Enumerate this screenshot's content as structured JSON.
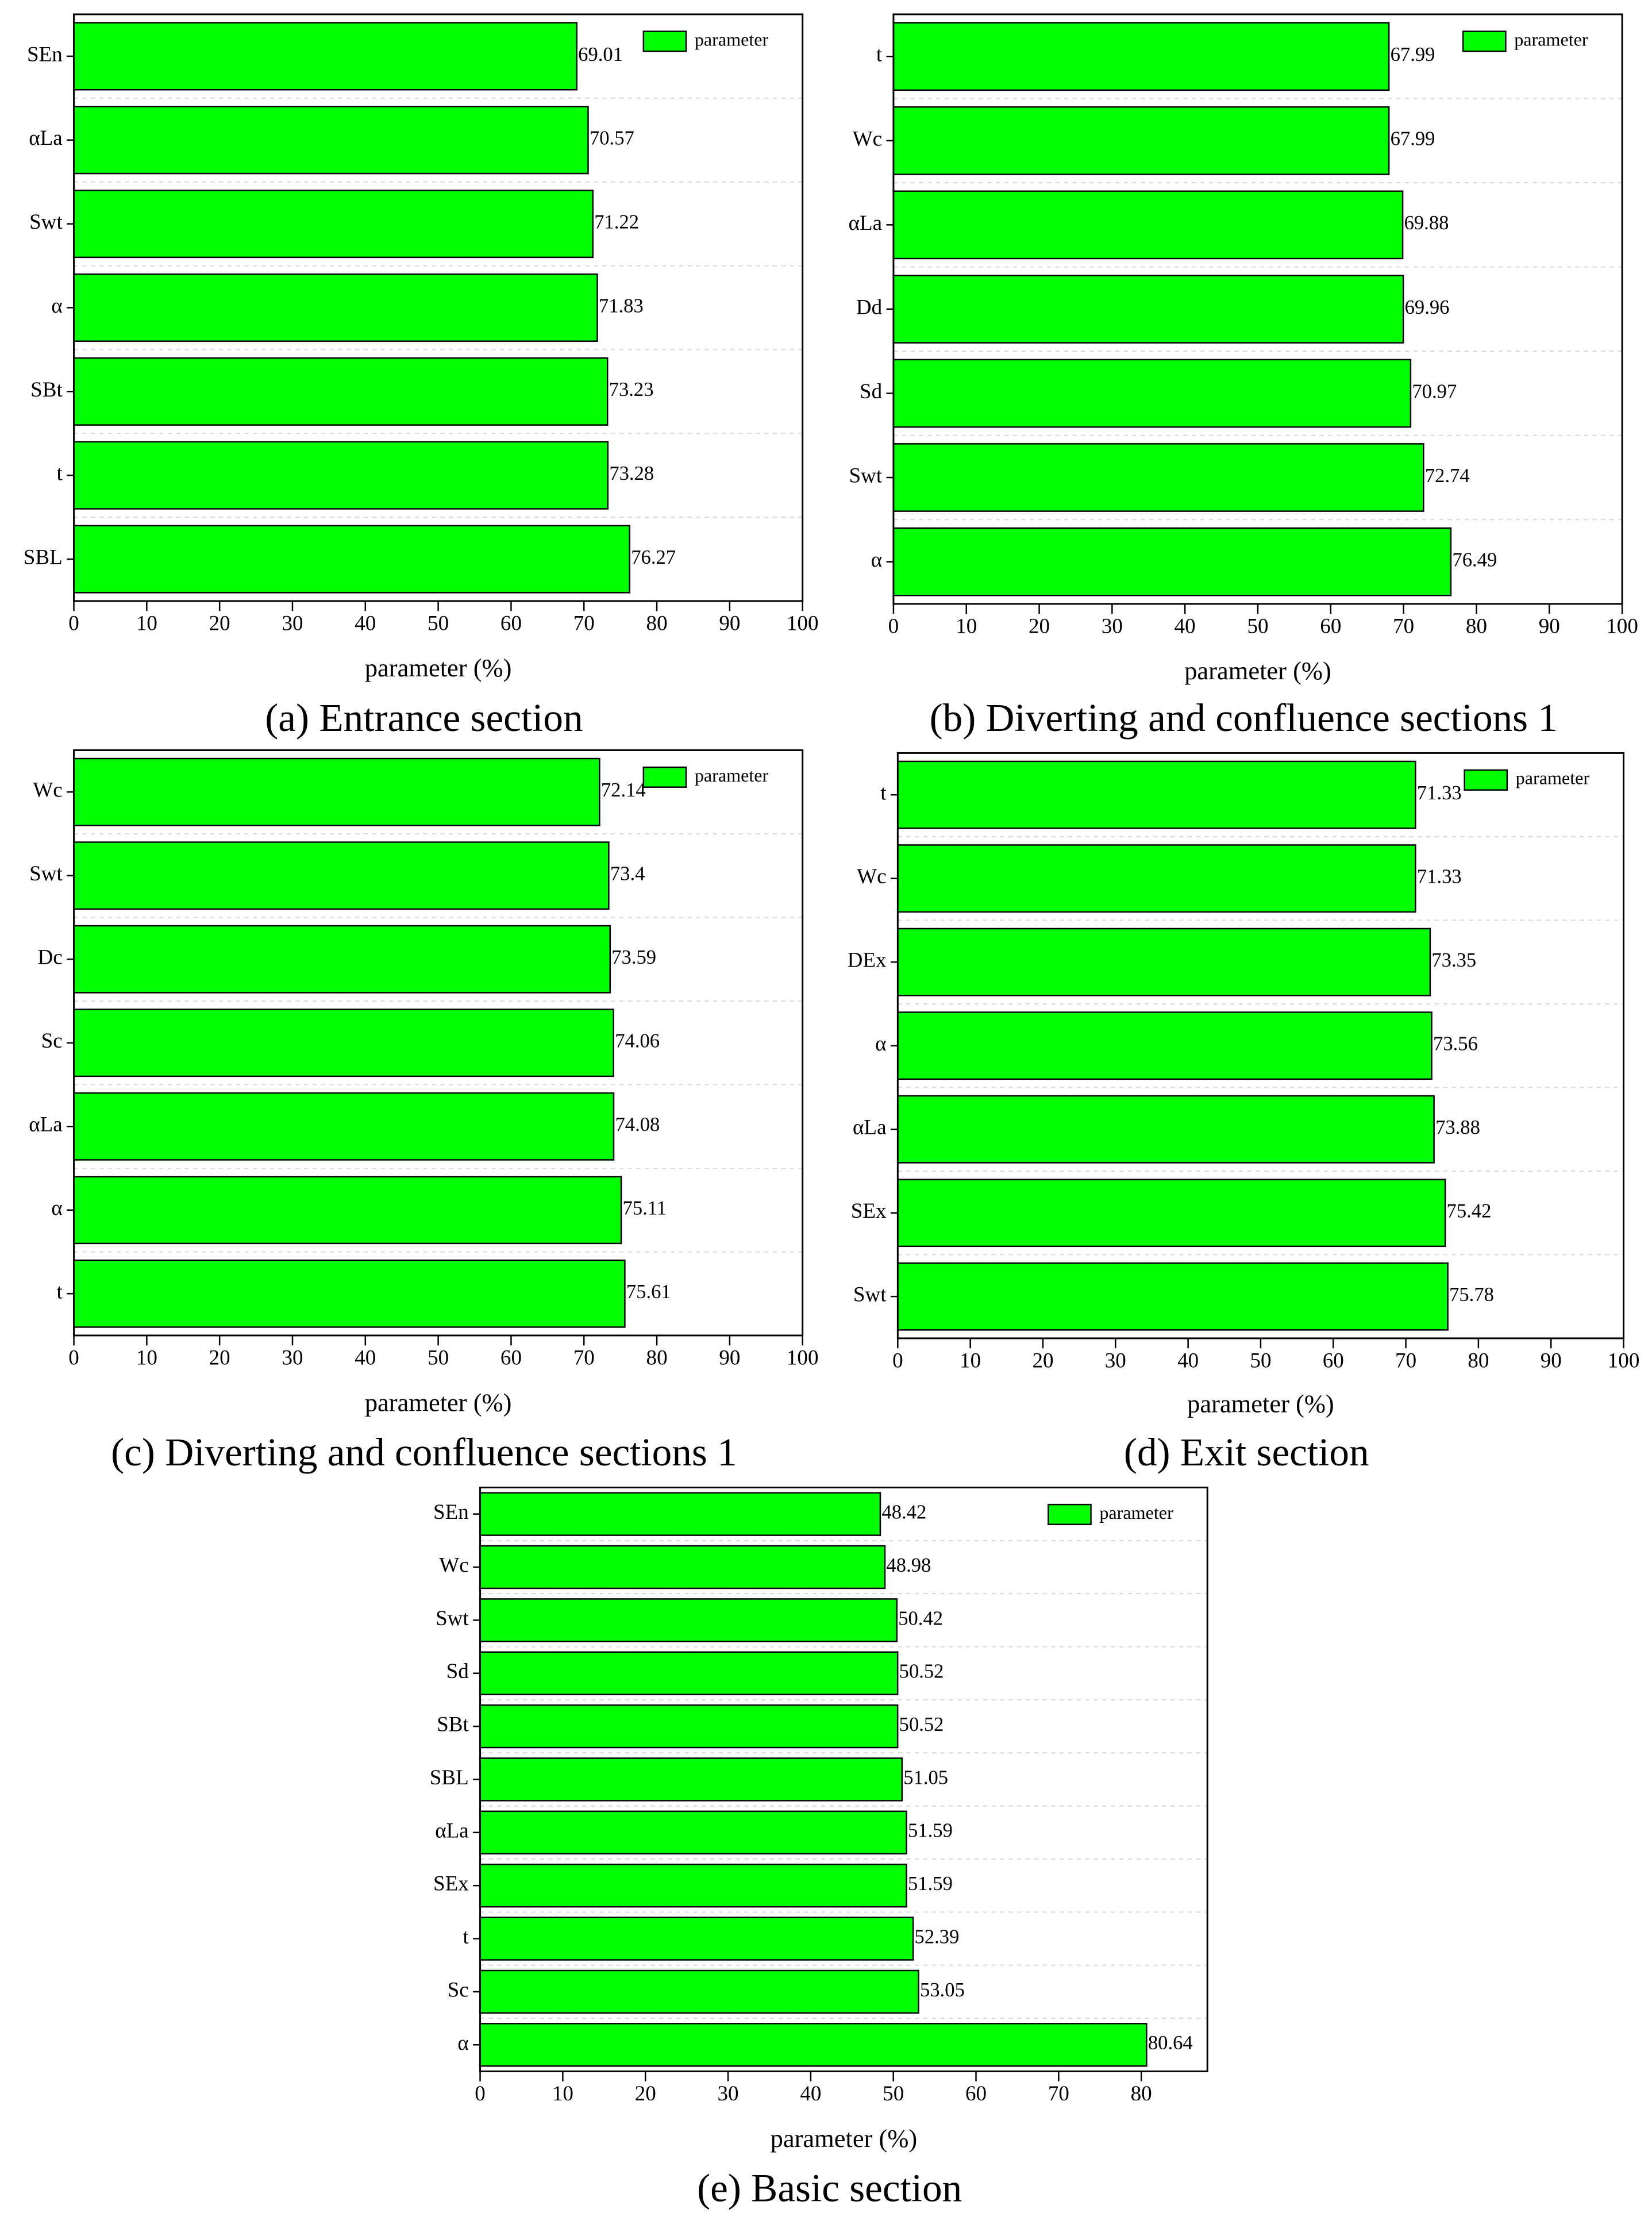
{
  "chart_data": [
    {
      "type": "barh",
      "caption": "(a) Entrance section",
      "xlabel": "parameter (%)",
      "categories": [
        "SEn",
        "αLa",
        "Swt",
        "α",
        "SBt",
        "t",
        "SBL"
      ],
      "series": [
        {
          "name": "parameter",
          "color": "#00ff00",
          "values": [
            69.01,
            70.57,
            71.22,
            71.83,
            73.23,
            73.28,
            76.27
          ]
        }
      ],
      "xlim": [
        0,
        100
      ],
      "xticks": [
        0,
        10,
        20,
        30,
        40,
        50,
        60,
        70,
        80,
        90,
        100
      ],
      "grid": true,
      "legend": "upper right"
    },
    {
      "type": "barh",
      "caption": "(b) Diverting and confluence sections 1",
      "xlabel": "parameter (%)",
      "categories": [
        "t",
        "Wc",
        "αLa",
        "Dd",
        "Sd",
        "Swt",
        "α"
      ],
      "series": [
        {
          "name": "parameter",
          "color": "#00ff00",
          "values": [
            67.99,
            67.99,
            69.88,
            69.96,
            70.97,
            72.74,
            76.49
          ]
        }
      ],
      "xlim": [
        0,
        100
      ],
      "xticks": [
        0,
        10,
        20,
        30,
        40,
        50,
        60,
        70,
        80,
        90,
        100
      ],
      "grid": true,
      "legend": "upper right"
    },
    {
      "type": "barh",
      "caption": "(c) Diverting and confluence sections 1",
      "xlabel": "parameter (%)",
      "categories": [
        "Wc",
        "Swt",
        "Dc",
        "Sc",
        "αLa",
        "α",
        "t"
      ],
      "series": [
        {
          "name": "parameter",
          "color": "#00ff00",
          "values": [
            72.14,
            73.4,
            73.59,
            74.06,
            74.08,
            75.11,
            75.61
          ]
        }
      ],
      "xlim": [
        0,
        100
      ],
      "xticks": [
        0,
        10,
        20,
        30,
        40,
        50,
        60,
        70,
        80,
        90,
        100
      ],
      "grid": true,
      "legend": "upper right"
    },
    {
      "type": "barh",
      "caption": "(d) Exit section",
      "xlabel": "parameter (%)",
      "categories": [
        "t",
        "Wc",
        "DEx",
        "α",
        "αLa",
        "SEx",
        "Swt"
      ],
      "series": [
        {
          "name": "parameter",
          "color": "#00ff00",
          "values": [
            71.33,
            71.33,
            73.35,
            73.56,
            73.88,
            75.42,
            75.78
          ]
        }
      ],
      "xlim": [
        0,
        100
      ],
      "xticks": [
        0,
        10,
        20,
        30,
        40,
        50,
        60,
        70,
        80,
        90,
        100
      ],
      "grid": true,
      "legend": "upper right"
    },
    {
      "type": "barh",
      "caption": "(e) Basic section",
      "xlabel": "parameter (%)",
      "categories": [
        "SEn",
        "Wc",
        "Swt",
        "Sd",
        "SBt",
        "SBL",
        "αLa",
        "SEx",
        "t",
        "Sc",
        "α"
      ],
      "series": [
        {
          "name": "parameter",
          "color": "#00ff00",
          "values": [
            48.42,
            48.98,
            50.42,
            50.52,
            50.52,
            51.05,
            51.59,
            51.59,
            52.39,
            53.05,
            80.64
          ]
        }
      ],
      "xlim": [
        0,
        88
      ],
      "xticks": [
        0,
        10,
        20,
        30,
        40,
        50,
        60,
        70,
        80
      ],
      "grid": true,
      "legend": "upper right"
    }
  ]
}
